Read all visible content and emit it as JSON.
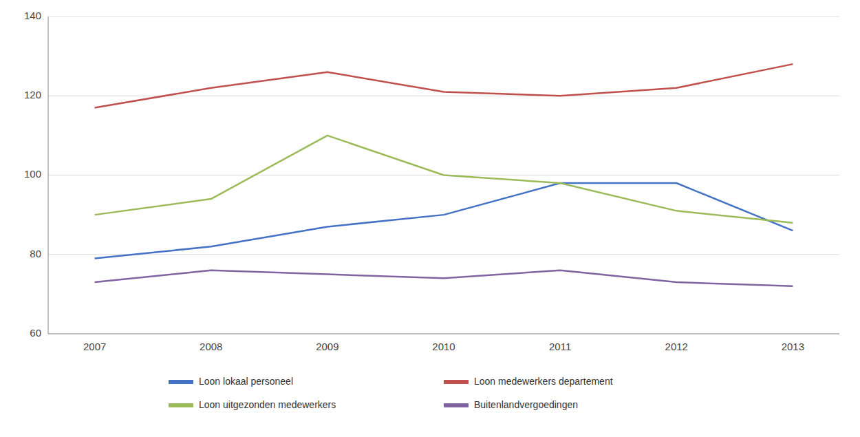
{
  "chart_data": {
    "type": "line",
    "x": [
      2007,
      2008,
      2009,
      2010,
      2011,
      2012,
      2013
    ],
    "xlim": [
      2006.6,
      2013.4
    ],
    "xticks": [
      2007,
      2008,
      2009,
      2010,
      2011,
      2012,
      2013
    ],
    "ylim": [
      60,
      140
    ],
    "yticks": [
      60,
      80,
      100,
      120,
      140
    ],
    "grid": true,
    "legend": "bottom",
    "series": [
      {
        "name": "Loon lokaal personeel",
        "color": "#4472C4",
        "values": [
          79,
          82,
          87,
          90,
          98,
          98,
          86
        ]
      },
      {
        "name": "Loon medewerkers departement",
        "color": "#C0504D",
        "values": [
          117,
          122,
          126,
          121,
          120,
          122,
          128
        ]
      },
      {
        "name": "Loon uitgezonden medewerkers",
        "color": "#9BBB59",
        "values": [
          90,
          94,
          110,
          100,
          98,
          91,
          88
        ]
      },
      {
        "name": "Buitenlandvergoedingen",
        "color": "#8064A2",
        "values": [
          73,
          76,
          75,
          74,
          76,
          73,
          72
        ]
      }
    ]
  }
}
